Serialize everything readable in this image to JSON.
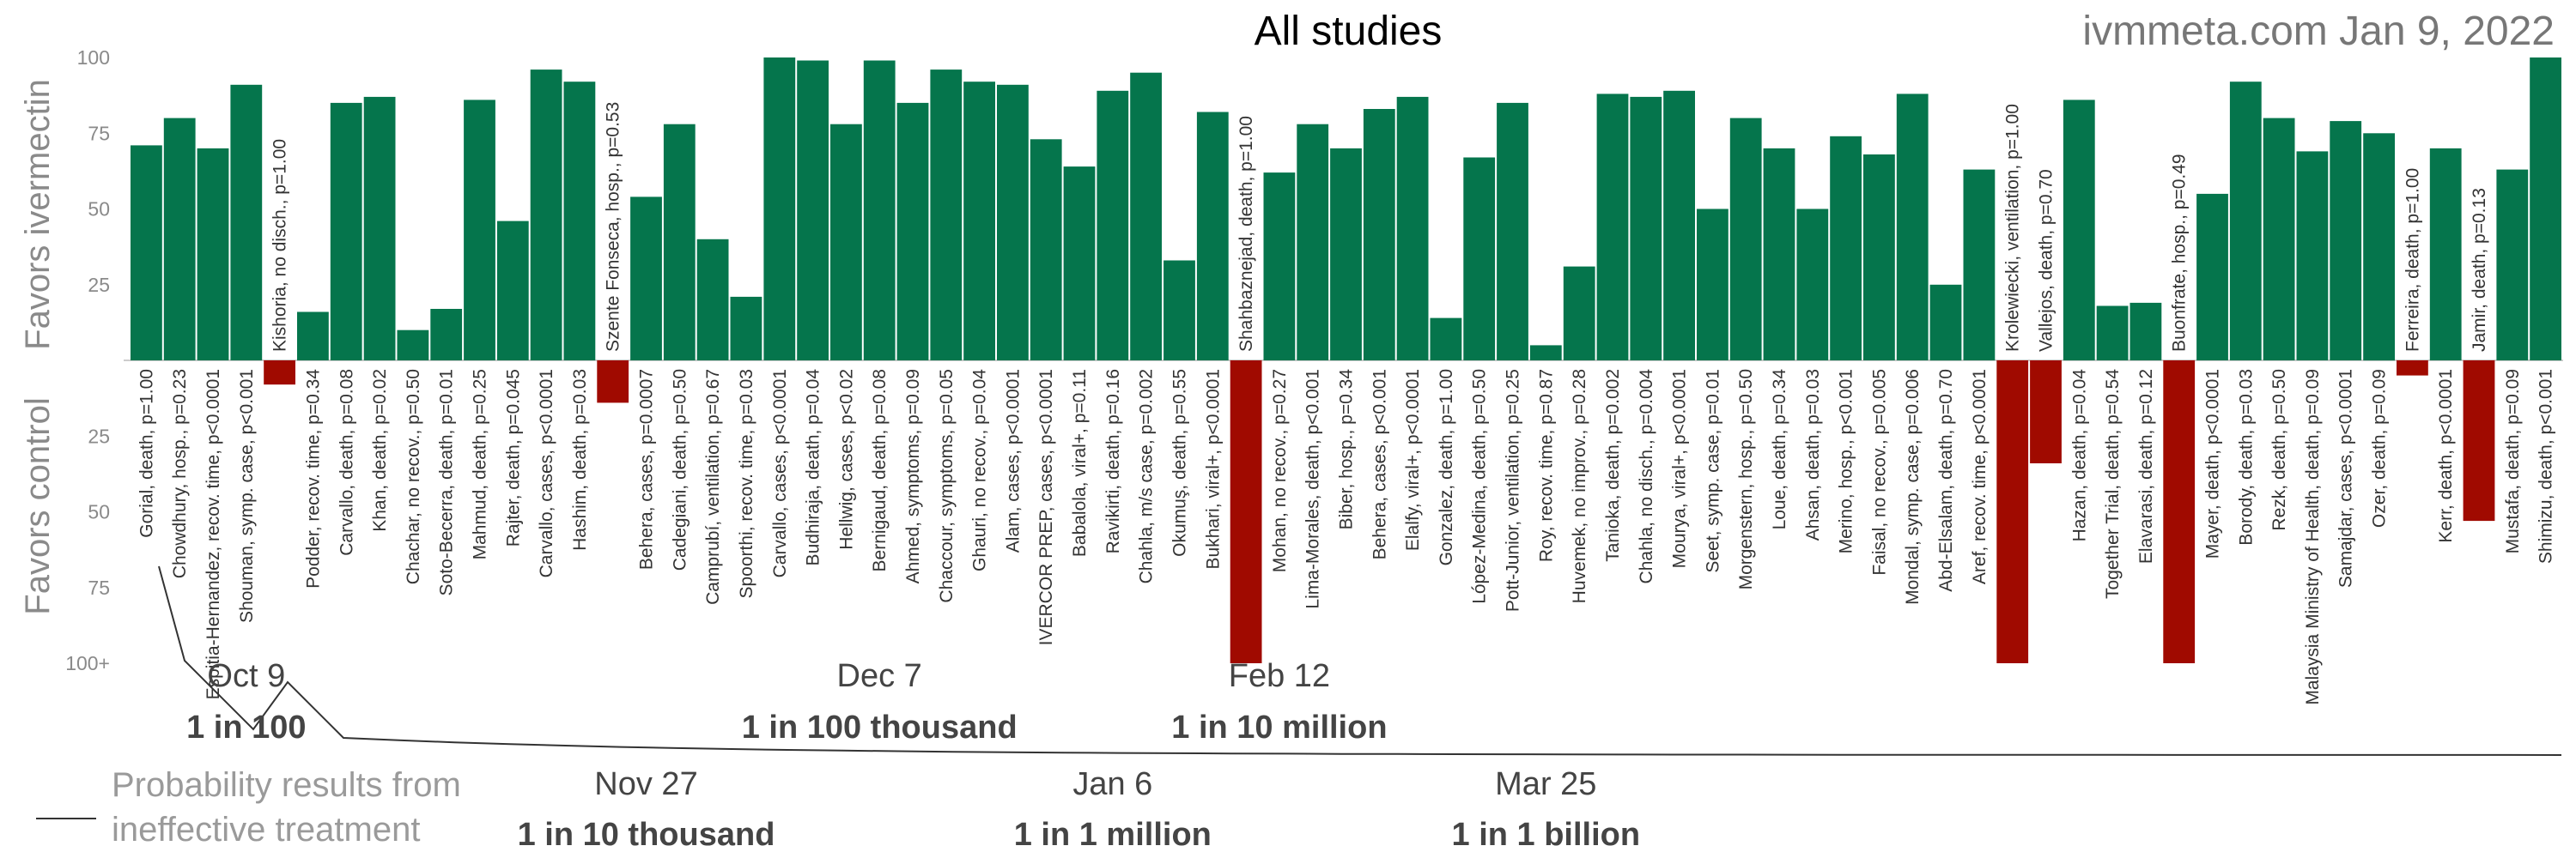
{
  "title": "All studies",
  "site_label": "ivmmeta.com Jan 9, 2022",
  "colors": {
    "favor": "#05754c",
    "against": "#a00a00",
    "axis": "#cccccc",
    "text": "#8a8a8a"
  },
  "legend": {
    "line1": "Probability results from",
    "line2": "ineffective treatment"
  },
  "chart_data": {
    "type": "bar",
    "title": "All studies",
    "ylabel_top": "Favors ivermectin",
    "ylabel_bottom": "Favors control",
    "yticks_top": [
      "100",
      "75",
      "50",
      "25"
    ],
    "yticks_bottom": [
      "25",
      "50",
      "75",
      "100+"
    ],
    "ylim": [
      -100,
      100
    ],
    "grid": false,
    "series": [
      {
        "label": "Gorial, death, p=1.00",
        "value": 71
      },
      {
        "label": "Chowdhury, hosp., p=0.23",
        "value": 80
      },
      {
        "label": "Espitia-Hernandez, recov. time, p<0.0001",
        "value": 70
      },
      {
        "label": "Shouman, symp. case, p<0.001",
        "value": 91
      },
      {
        "label": "Kishoria, no disch., p=1.00",
        "value": -8
      },
      {
        "label": "Podder, recov. time, p=0.34",
        "value": 16
      },
      {
        "label": "Carvallo, death, p=0.08",
        "value": 85
      },
      {
        "label": "Khan, death, p=0.02",
        "value": 87
      },
      {
        "label": "Chachar, no recov., p=0.50",
        "value": 10
      },
      {
        "label": "Soto-Becerra, death, p=0.01",
        "value": 17
      },
      {
        "label": "Mahmud, death, p=0.25",
        "value": 86
      },
      {
        "label": "Rajter, death, p=0.045",
        "value": 46
      },
      {
        "label": "Carvallo, cases, p<0.0001",
        "value": 96
      },
      {
        "label": "Hashim, death, p=0.03",
        "value": 92
      },
      {
        "label": "Szente Fonseca, hosp., p=0.53",
        "value": -14
      },
      {
        "label": "Behera, cases, p=0.0007",
        "value": 54
      },
      {
        "label": "Cadegiani, death, p=0.50",
        "value": 78
      },
      {
        "label": "Camprubí, ventilation, p=0.67",
        "value": 40
      },
      {
        "label": "Spoorthi, recov. time, p=0.03",
        "value": 21
      },
      {
        "label": "Carvallo, cases, p<0.0001",
        "value": 100
      },
      {
        "label": "Budhiraja, death, p=0.04",
        "value": 99
      },
      {
        "label": "Hellwig, cases, p<0.02",
        "value": 78
      },
      {
        "label": "Bernigaud, death, p=0.08",
        "value": 99
      },
      {
        "label": "Ahmed, symptoms, p=0.09",
        "value": 85
      },
      {
        "label": "Chaccour, symptoms, p=0.05",
        "value": 96
      },
      {
        "label": "Ghauri, no recov., p=0.04",
        "value": 92
      },
      {
        "label": "Alam, cases, p<0.0001",
        "value": 91
      },
      {
        "label": "IVERCOR PREP, cases, p<0.0001",
        "value": 73
      },
      {
        "label": "Babalola, viral+, p=0.11",
        "value": 64
      },
      {
        "label": "Ravikirti, death, p=0.16",
        "value": 89
      },
      {
        "label": "Chahla, m/s case, p=0.002",
        "value": 95
      },
      {
        "label": "Okumuş, death, p=0.55",
        "value": 33
      },
      {
        "label": "Bukhari, viral+, p<0.0001",
        "value": 82
      },
      {
        "label": "Shahbaznejad, death, p=1.00",
        "value": -100
      },
      {
        "label": "Mohan, no recov., p=0.27",
        "value": 62
      },
      {
        "label": "Lima-Morales, death, p<0.001",
        "value": 78
      },
      {
        "label": "Biber, hosp., p=0.34",
        "value": 70
      },
      {
        "label": "Behera, cases, p<0.001",
        "value": 83
      },
      {
        "label": "Elalfy, viral+, p<0.0001",
        "value": 87
      },
      {
        "label": "Gonzalez, death, p=1.00",
        "value": 14
      },
      {
        "label": "López-Medina, death, p=0.50",
        "value": 67
      },
      {
        "label": "Pott-Junior, ventilation, p=0.25",
        "value": 85
      },
      {
        "label": "Roy, recov. time, p=0.87",
        "value": 5
      },
      {
        "label": "Huvemek, no improv., p=0.28",
        "value": 31
      },
      {
        "label": "Tanioka, death, p=0.002",
        "value": 88
      },
      {
        "label": "Chahla, no disch., p=0.004",
        "value": 87
      },
      {
        "label": "Mourya, viral+, p<0.0001",
        "value": 89
      },
      {
        "label": "Seet, symp. case, p=0.01",
        "value": 50
      },
      {
        "label": "Morgenstern, hosp., p=0.50",
        "value": 80
      },
      {
        "label": "Loue, death, p=0.34",
        "value": 70
      },
      {
        "label": "Ahsan, death, p=0.03",
        "value": 50
      },
      {
        "label": "Merino, hosp., p<0.001",
        "value": 74
      },
      {
        "label": "Faisal, no recov., p=0.005",
        "value": 68
      },
      {
        "label": "Mondal, symp. case, p=0.006",
        "value": 88
      },
      {
        "label": "Abd-Elsalam, death, p=0.70",
        "value": 25
      },
      {
        "label": "Aref, recov. time, p<0.0001",
        "value": 63
      },
      {
        "label": "Krolewiecki, ventilation, p=1.00",
        "value": -100
      },
      {
        "label": "Vallejos, death, p=0.70",
        "value": -34
      },
      {
        "label": "Hazan, death, p=0.04",
        "value": 86
      },
      {
        "label": "Together Trial, death, p=0.54",
        "value": 18
      },
      {
        "label": "Elavarasi, death, p=0.12",
        "value": 19
      },
      {
        "label": "Buonfrate, hosp., p=0.49",
        "value": -100
      },
      {
        "label": "Mayer, death, p<0.0001",
        "value": 55
      },
      {
        "label": "Borody, death, p=0.03",
        "value": 92
      },
      {
        "label": "Rezk, death, p=0.50",
        "value": 80
      },
      {
        "label": "Malaysia Ministry of Health, death, p=0.09",
        "value": 69
      },
      {
        "label": "Samajdar, cases, p<0.0001",
        "value": 79
      },
      {
        "label": "Ozer, death, p=0.09",
        "value": 75
      },
      {
        "label": "Ferreira, death, p=1.00",
        "value": -5
      },
      {
        "label": "Kerr, death, p<0.0001",
        "value": 70
      },
      {
        "label": "Jamir, death, p=0.13",
        "value": -53
      },
      {
        "label": "Mustafa, death, p=0.09",
        "value": 63
      },
      {
        "label": "Shimizu, death, p<0.001",
        "value": 100
      }
    ],
    "annotations": [
      {
        "date": "Oct 9",
        "probability": "1 in 100",
        "row": "top",
        "study_index": 3
      },
      {
        "date": "Dec 7",
        "probability": "1 in 100 thousand",
        "row": "top",
        "study_index": 22
      },
      {
        "date": "Feb 12",
        "probability": "1 in 10 million",
        "row": "top",
        "study_index": 34
      },
      {
        "date": "Nov 27",
        "probability": "1 in 10 thousand",
        "row": "bottom",
        "study_index": 15
      },
      {
        "date": "Jan 6",
        "probability": "1 in 1 million",
        "row": "bottom",
        "study_index": 29
      },
      {
        "date": "Mar 25",
        "probability": "1 in 1 billion",
        "row": "bottom",
        "study_index": 42
      }
    ]
  }
}
